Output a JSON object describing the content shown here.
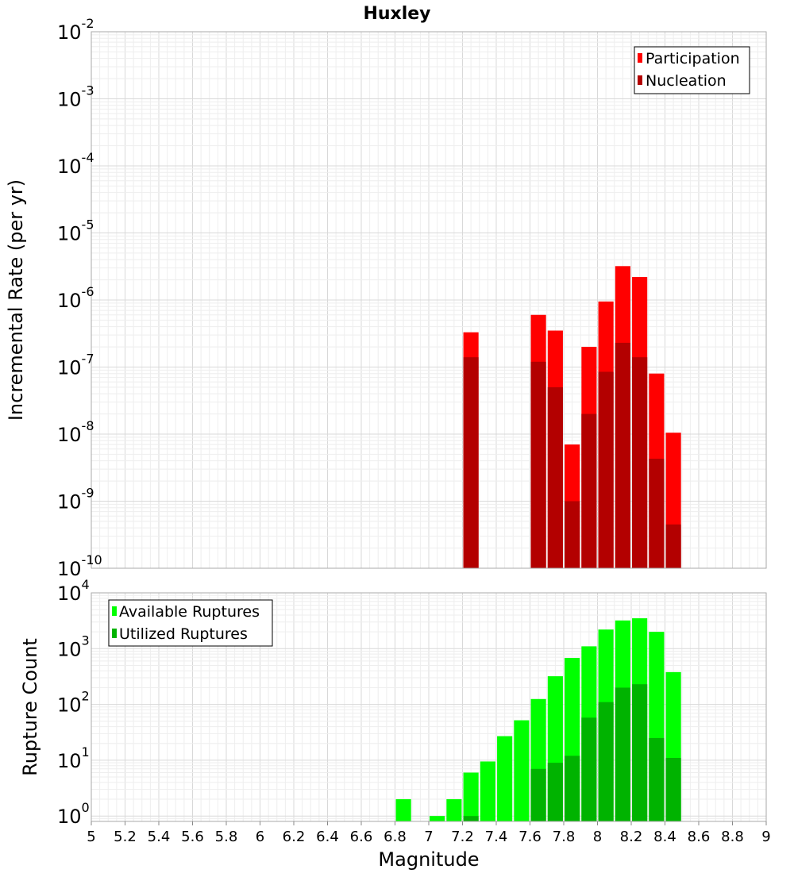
{
  "chart_data": [
    {
      "type": "bar",
      "title": "Huxley",
      "xlabel": "",
      "ylabel": "Incremental Rate (per yr)",
      "xlim": [
        5,
        9
      ],
      "ylim": [
        1e-10,
        0.01
      ],
      "yscale": "log",
      "grid": true,
      "legend_position": "top-right",
      "yticks": [
        {
          "base": "10",
          "exp": "-10"
        },
        {
          "base": "10",
          "exp": "-9"
        },
        {
          "base": "10",
          "exp": "-8"
        },
        {
          "base": "10",
          "exp": "-7"
        },
        {
          "base": "10",
          "exp": "-6"
        },
        {
          "base": "10",
          "exp": "-5"
        },
        {
          "base": "10",
          "exp": "-4"
        },
        {
          "base": "10",
          "exp": "-3"
        },
        {
          "base": "10",
          "exp": "-2"
        }
      ],
      "series": [
        {
          "name": "Participation",
          "color": "#ff0000",
          "x": [
            7.25,
            7.65,
            7.75,
            7.85,
            7.95,
            8.05,
            8.15,
            8.25,
            8.35,
            8.45
          ],
          "values": [
            3.3e-07,
            6e-07,
            3.5e-07,
            7e-09,
            2e-07,
            9.5e-07,
            3.2e-06,
            2.2e-06,
            8e-08,
            1.05e-08
          ]
        },
        {
          "name": "Nucleation",
          "color": "#b30000",
          "x": [
            7.25,
            7.65,
            7.75,
            7.85,
            7.95,
            8.05,
            8.15,
            8.25,
            8.35,
            8.45
          ],
          "values": [
            1.4e-07,
            1.2e-07,
            5e-08,
            1e-09,
            2e-08,
            8.5e-08,
            2.3e-07,
            1.4e-07,
            4.3e-09,
            4.5e-10
          ]
        }
      ]
    },
    {
      "type": "bar",
      "title": "",
      "xlabel": "Magnitude",
      "ylabel": "Rupture Count",
      "xlim": [
        5,
        9
      ],
      "ylim": [
        0.8,
        10000.0
      ],
      "yscale": "log",
      "grid": true,
      "legend_position": "top-left",
      "yticks": [
        {
          "base": "10",
          "exp": "0",
          "value": 1
        },
        {
          "base": "10",
          "exp": "1",
          "value": 10
        },
        {
          "base": "10",
          "exp": "2",
          "value": 100
        },
        {
          "base": "10",
          "exp": "3",
          "value": 1000
        },
        {
          "base": "10",
          "exp": "4",
          "value": 10000
        }
      ],
      "xticks": [
        "5",
        "5.2",
        "5.4",
        "5.6",
        "5.8",
        "6",
        "6.2",
        "6.4",
        "6.6",
        "6.8",
        "7",
        "7.2",
        "7.4",
        "7.6",
        "7.8",
        "8",
        "8.2",
        "8.4",
        "8.6",
        "8.8",
        "9"
      ],
      "series": [
        {
          "name": "Available Ruptures",
          "color": "#00ff00",
          "x": [
            6.85,
            7.05,
            7.15,
            7.25,
            7.35,
            7.45,
            7.55,
            7.65,
            7.75,
            7.85,
            7.95,
            8.05,
            8.15,
            8.25,
            8.35,
            8.45
          ],
          "values": [
            2,
            1,
            2,
            6,
            9.5,
            27,
            52,
            125,
            320,
            680,
            1100,
            2200,
            3200,
            3500,
            2000,
            380
          ]
        },
        {
          "name": "Utilized Ruptures",
          "color": "#00b300",
          "x": [
            7.25,
            7.65,
            7.75,
            7.85,
            7.95,
            8.05,
            8.15,
            8.25,
            8.35,
            8.45
          ],
          "values": [
            1,
            7,
            9,
            12,
            58,
            110,
            200,
            230,
            25,
            11
          ]
        }
      ]
    }
  ]
}
